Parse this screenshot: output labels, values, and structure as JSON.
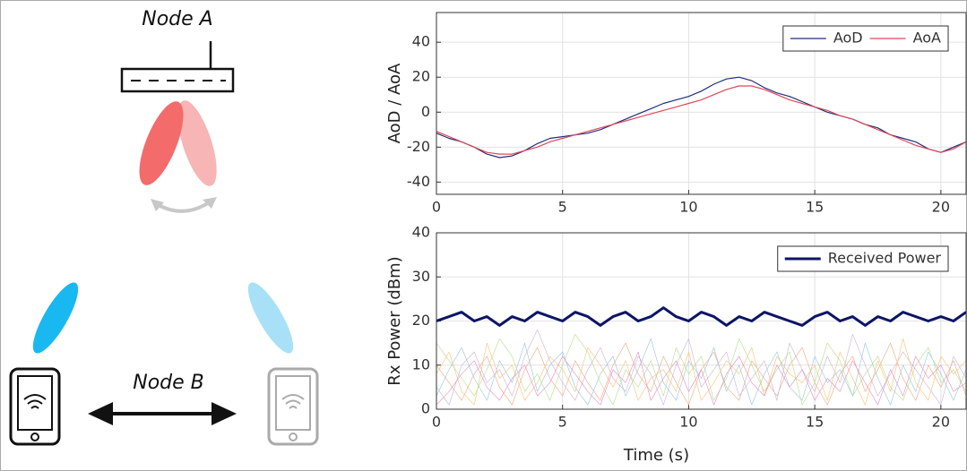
{
  "diagram": {
    "node_a": "Node A",
    "node_b": "Node B"
  },
  "chart_data": [
    {
      "type": "line",
      "y_label": "AoD / AoA",
      "x": [
        0,
        0.5,
        1,
        1.5,
        2,
        2.5,
        3,
        3.5,
        4,
        4.5,
        5,
        5.5,
        6,
        6.5,
        7,
        7.5,
        8,
        8.5,
        9,
        9.5,
        10,
        10.5,
        11,
        11.5,
        12,
        12.5,
        13,
        13.5,
        14,
        14.5,
        15,
        15.5,
        16,
        16.5,
        17,
        17.5,
        18,
        18.5,
        19,
        19.5,
        20,
        20.5,
        21
      ],
      "series": [
        {
          "name": "AoD",
          "color": "#1f2f7a",
          "width": 1.2,
          "values": [
            -12,
            -15,
            -17,
            -20,
            -24,
            -26,
            -25,
            -22,
            -18,
            -15,
            -14,
            -13,
            -12,
            -10,
            -7,
            -4,
            -1,
            2,
            5,
            7,
            9,
            12,
            16,
            19,
            20,
            18,
            14,
            11,
            9,
            6,
            3,
            0,
            -2,
            -4,
            -7,
            -9,
            -13,
            -15,
            -17,
            -21,
            -23,
            -20,
            -17
          ]
        },
        {
          "name": "AoA",
          "color": "#e0485a",
          "width": 1.2,
          "values": [
            -11,
            -14,
            -17,
            -20,
            -23,
            -24,
            -24,
            -22,
            -20,
            -17,
            -15,
            -13,
            -11,
            -9,
            -7,
            -5,
            -3,
            -1,
            1,
            3,
            5,
            7,
            10,
            13,
            15,
            15,
            13,
            10,
            7,
            5,
            3,
            1,
            -2,
            -4,
            -7,
            -10,
            -13,
            -16,
            -19,
            -21,
            -23,
            -21,
            -17
          ]
        }
      ],
      "xlim": [
        0,
        21
      ],
      "xticks": [
        0,
        5,
        10,
        15,
        20
      ],
      "ylim": [
        -47,
        57
      ],
      "yticks": [
        -40,
        -20,
        0,
        20,
        40
      ],
      "grid": true,
      "legend": "upper-right"
    },
    {
      "type": "line",
      "x_label": "Time (s)",
      "y_label": "Rx Power (dBm)",
      "x": [
        0,
        0.5,
        1,
        1.5,
        2,
        2.5,
        3,
        3.5,
        4,
        4.5,
        5,
        5.5,
        6,
        6.5,
        7,
        7.5,
        8,
        8.5,
        9,
        9.5,
        10,
        10.5,
        11,
        11.5,
        12,
        12.5,
        13,
        13.5,
        14,
        14.5,
        15,
        15.5,
        16,
        16.5,
        17,
        17.5,
        18,
        18.5,
        19,
        19.5,
        20,
        20.5,
        21
      ],
      "series": [
        {
          "color": "#f4a582",
          "width": 0.6,
          "values": [
            10,
            6,
            2,
            8,
            12,
            5,
            1,
            9,
            14,
            7,
            3,
            11,
            6,
            2,
            10,
            15,
            8,
            4,
            12,
            6,
            1,
            9,
            13,
            5,
            2,
            11,
            7,
            3,
            10,
            14,
            6,
            1,
            8,
            12,
            4,
            9,
            15,
            7,
            2,
            10,
            5,
            11,
            3
          ]
        },
        {
          "color": "#92c5de",
          "width": 0.6,
          "values": [
            3,
            9,
            14,
            7,
            2,
            11,
            6,
            15,
            4,
            10,
            13,
            5,
            1,
            8,
            12,
            3,
            9,
            16,
            6,
            2,
            11,
            7,
            14,
            4,
            10,
            1,
            8,
            13,
            5,
            2,
            12,
            6,
            9,
            3,
            15,
            7,
            1,
            10,
            4,
            13,
            8,
            2,
            9
          ]
        },
        {
          "color": "#b2df8a",
          "width": 0.6,
          "values": [
            15,
            11,
            7,
            3,
            9,
            16,
            12,
            4,
            8,
            2,
            10,
            17,
            13,
            6,
            1,
            9,
            5,
            11,
            3,
            14,
            8,
            12,
            2,
            7,
            16,
            10,
            4,
            9,
            13,
            1,
            6,
            15,
            11,
            3,
            8,
            12,
            5,
            2,
            10,
            14,
            6,
            9,
            4
          ]
        },
        {
          "color": "#cab2d6",
          "width": 0.6,
          "values": [
            5,
            1,
            10,
            13,
            6,
            9,
            3,
            12,
            18,
            11,
            6,
            2,
            9,
            14,
            7,
            4,
            12,
            8,
            1,
            10,
            16,
            5,
            9,
            13,
            3,
            7,
            11,
            2,
            15,
            9,
            4,
            12,
            6,
            17,
            10,
            3,
            8,
            13,
            9,
            5,
            1,
            12,
            7
          ]
        },
        {
          "color": "#fdbf6f",
          "width": 0.6,
          "values": [
            8,
            13,
            4,
            1,
            15,
            7,
            10,
            2,
            6,
            12,
            9,
            4,
            14,
            10,
            5,
            11,
            2,
            7,
            9,
            4,
            13,
            2,
            6,
            11,
            8,
            14,
            3,
            12,
            8,
            6,
            10,
            2,
            13,
            7,
            1,
            11,
            4,
            16,
            6,
            2,
            12,
            8,
            11
          ]
        },
        {
          "color": "#e78ac3",
          "width": 0.6,
          "values": [
            1,
            4,
            8,
            11,
            5,
            2,
            7,
            10,
            3,
            6,
            12,
            8,
            4,
            1,
            9,
            6,
            13,
            2,
            7,
            11,
            4,
            9,
            1,
            8,
            12,
            6,
            3,
            10,
            5,
            9,
            2,
            7,
            4,
            11,
            6,
            1,
            9,
            3,
            12,
            7,
            10,
            4,
            6
          ]
        },
        {
          "name": "Received Power",
          "color": "#0d1566",
          "width": 3,
          "values": [
            20,
            21,
            22,
            20,
            21,
            19,
            21,
            20,
            22,
            21,
            20,
            22,
            21,
            19,
            21,
            22,
            20,
            21,
            23,
            21,
            20,
            22,
            21,
            19,
            21,
            20,
            22,
            21,
            20,
            19,
            21,
            22,
            20,
            21,
            19,
            21,
            20,
            22,
            21,
            20,
            21,
            20,
            22
          ]
        }
      ],
      "xlim": [
        0,
        21
      ],
      "xticks": [
        0,
        5,
        10,
        15,
        20
      ],
      "ylim": [
        0,
        40
      ],
      "yticks": [
        0,
        10,
        20,
        30,
        40
      ],
      "grid": true,
      "legend": "upper-right"
    }
  ]
}
